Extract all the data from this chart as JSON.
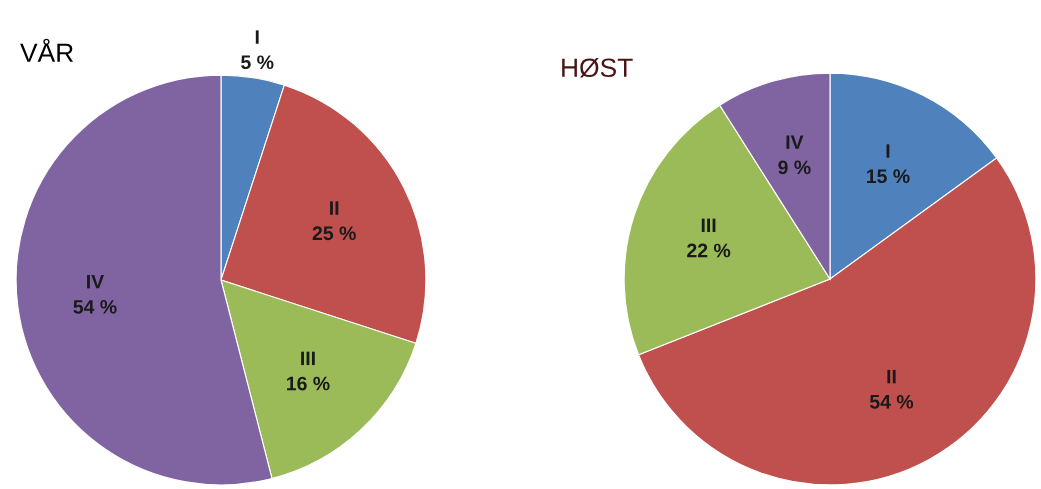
{
  "chart_data": [
    {
      "type": "pie",
      "title": "VÅR",
      "categories": [
        "I",
        "II",
        "III",
        "IV"
      ],
      "values": [
        5,
        25,
        16,
        54
      ],
      "value_labels": [
        "5 %",
        "25 %",
        "16 %",
        "54 %"
      ],
      "colors": [
        "#4f81bd",
        "#c0504d",
        "#9bbb59",
        "#8064a2"
      ]
    },
    {
      "type": "pie",
      "title": "HØST",
      "categories": [
        "I",
        "II",
        "III",
        "IV"
      ],
      "values": [
        15,
        54,
        22,
        9
      ],
      "value_labels": [
        "15 %",
        "54 %",
        "22 %",
        "9 %"
      ],
      "colors": [
        "#4f81bd",
        "#c0504d",
        "#9bbb59",
        "#8064a2"
      ]
    }
  ]
}
